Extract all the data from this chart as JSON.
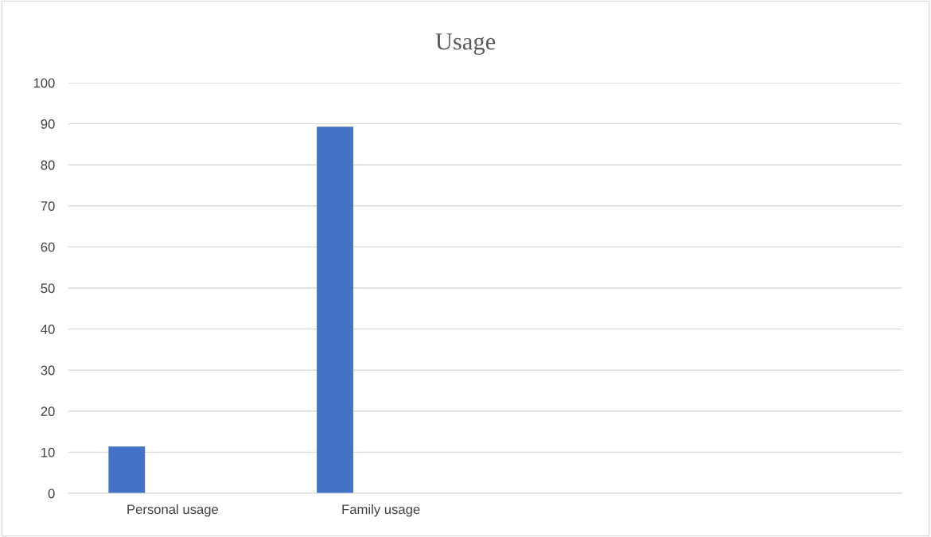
{
  "chart_data": {
    "type": "bar",
    "title": "Usage",
    "categories": [
      "Personal usage",
      "Family usage",
      null,
      null
    ],
    "values": [
      11.4,
      89.3,
      null,
      null
    ],
    "color": "#4472c4",
    "ylim": [
      0,
      100
    ],
    "yticks": [
      0,
      10,
      20,
      30,
      40,
      50,
      60,
      70,
      80,
      90,
      100
    ],
    "grid": "y"
  }
}
